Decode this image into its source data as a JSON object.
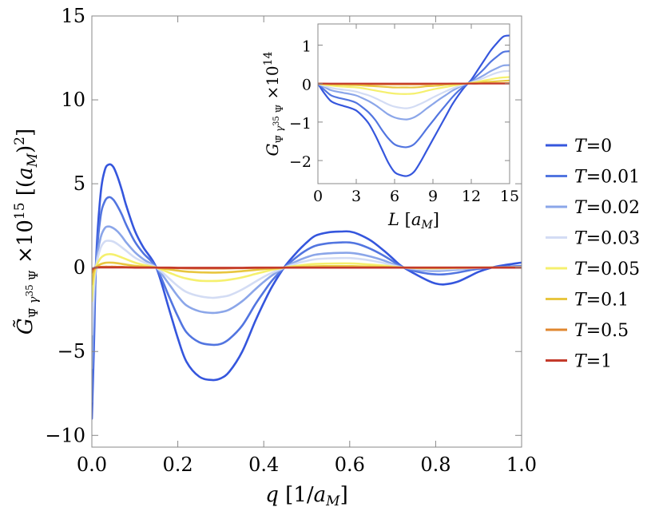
{
  "chart_data": [
    {
      "type": "line",
      "title": "",
      "xlabel": "q [1/a_M]",
      "ylabel": "G̃_{Ψ̄γ^35Ψ} ×10^15 [(a_M)^2]",
      "xlim": [
        0,
        1.0
      ],
      "ylim": [
        -10.7,
        15
      ],
      "xticks": [
        "0.0",
        "0.2",
        "0.4",
        "0.6",
        "0.8",
        "1.0"
      ],
      "yticks": [
        "−10",
        "−5",
        "0",
        "5",
        "10",
        "15"
      ],
      "grid": false,
      "legend": "right-outside",
      "x": [
        0,
        0.005,
        0.01,
        0.02,
        0.03,
        0.04,
        0.05,
        0.06,
        0.07,
        0.08,
        0.1,
        0.12,
        0.15,
        0.18,
        0.2,
        0.22,
        0.25,
        0.28,
        0.3,
        0.32,
        0.35,
        0.38,
        0.4,
        0.42,
        0.45,
        0.48,
        0.5,
        0.52,
        0.55,
        0.58,
        0.6,
        0.62,
        0.65,
        0.68,
        0.7,
        0.72,
        0.75,
        0.78,
        0.8,
        0.82,
        0.85,
        0.88,
        0.9,
        0.93,
        0.96,
        1.0
      ],
      "series": [
        {
          "name": "T=0",
          "color": "#3556dd",
          "values": [
            -9.0,
            -4.5,
            0.5,
            4.3,
            5.8,
            6.15,
            6.0,
            5.4,
            4.6,
            3.7,
            2.2,
            1.2,
            0.0,
            -2.5,
            -4.2,
            -5.6,
            -6.5,
            -6.7,
            -6.6,
            -6.2,
            -5.0,
            -3.2,
            -2.1,
            -1.1,
            0.1,
            1.0,
            1.5,
            1.9,
            2.1,
            2.15,
            2.15,
            2.0,
            1.6,
            1.0,
            0.55,
            0.1,
            -0.35,
            -0.75,
            -0.95,
            -1.0,
            -0.85,
            -0.5,
            -0.25,
            0.0,
            0.15,
            0.3
          ]
        },
        {
          "name": "T=0.01",
          "color": "#5275e0",
          "values": [
            -8.0,
            -3.5,
            0.3,
            3.0,
            3.95,
            4.2,
            4.05,
            3.65,
            3.15,
            2.55,
            1.55,
            0.85,
            0.0,
            -1.75,
            -2.9,
            -3.85,
            -4.45,
            -4.6,
            -4.55,
            -4.25,
            -3.45,
            -2.2,
            -1.45,
            -0.75,
            0.05,
            0.7,
            1.05,
            1.3,
            1.45,
            1.5,
            1.5,
            1.4,
            1.1,
            0.7,
            0.38,
            0.07,
            -0.2,
            -0.35,
            -0.4,
            -0.4,
            -0.3,
            -0.15,
            -0.07,
            0.0,
            0.05,
            0.1
          ]
        },
        {
          "name": "T=0.02",
          "color": "#8ba6e9",
          "values": [
            -6.0,
            -2.0,
            0.2,
            1.75,
            2.35,
            2.45,
            2.35,
            2.15,
            1.85,
            1.5,
            0.92,
            0.5,
            0.0,
            -1.0,
            -1.7,
            -2.25,
            -2.6,
            -2.7,
            -2.65,
            -2.5,
            -2.0,
            -1.3,
            -0.85,
            -0.45,
            0.03,
            0.42,
            0.62,
            0.77,
            0.85,
            0.88,
            0.88,
            0.82,
            0.65,
            0.42,
            0.22,
            0.04,
            -0.1,
            -0.18,
            -0.2,
            -0.18,
            -0.12,
            -0.05,
            -0.02,
            0.0,
            0.02,
            0.05
          ]
        },
        {
          "name": "T=0.03",
          "color": "#d3dcf4",
          "values": [
            -4.0,
            -1.2,
            0.1,
            1.15,
            1.55,
            1.6,
            1.55,
            1.4,
            1.2,
            1.0,
            0.6,
            0.33,
            0.0,
            -0.65,
            -1.1,
            -1.45,
            -1.7,
            -1.8,
            -1.75,
            -1.65,
            -1.3,
            -0.85,
            -0.55,
            -0.3,
            0.02,
            0.28,
            0.4,
            0.5,
            0.55,
            0.57,
            0.57,
            0.53,
            0.42,
            0.27,
            0.14,
            0.02,
            -0.06,
            -0.1,
            -0.11,
            -0.1,
            -0.06,
            -0.03,
            -0.01,
            0.0,
            0.01,
            0.03
          ]
        },
        {
          "name": "T=0.05",
          "color": "#f5f06e",
          "values": [
            -2.0,
            -0.5,
            0.05,
            0.55,
            0.75,
            0.8,
            0.78,
            0.7,
            0.6,
            0.5,
            0.3,
            0.16,
            0.0,
            -0.3,
            -0.5,
            -0.65,
            -0.78,
            -0.8,
            -0.78,
            -0.72,
            -0.58,
            -0.38,
            -0.25,
            -0.13,
            0.01,
            0.12,
            0.18,
            0.22,
            0.24,
            0.25,
            0.25,
            0.23,
            0.18,
            0.12,
            0.06,
            0.01,
            -0.02,
            -0.04,
            -0.04,
            -0.03,
            -0.02,
            -0.01,
            0.0,
            0.0,
            0.0,
            0.01
          ]
        },
        {
          "name": "T=0.1",
          "color": "#e8c640",
          "values": [
            -1.0,
            -0.2,
            0.02,
            0.2,
            0.28,
            0.3,
            0.29,
            0.26,
            0.22,
            0.18,
            0.11,
            0.06,
            0.0,
            -0.11,
            -0.18,
            -0.24,
            -0.28,
            -0.3,
            -0.29,
            -0.27,
            -0.21,
            -0.14,
            -0.09,
            -0.05,
            0.0,
            0.04,
            0.06,
            0.08,
            0.09,
            0.09,
            0.09,
            0.08,
            0.06,
            0.04,
            0.02,
            0.0,
            -0.01,
            -0.01,
            -0.01,
            -0.01,
            0.0,
            0.0,
            0.0,
            0.0,
            0.0,
            0.0
          ]
        },
        {
          "name": "T=0.5",
          "color": "#e0872f",
          "values": [
            -0.3,
            -0.05,
            0.0,
            0.04,
            0.05,
            0.05,
            0.05,
            0.04,
            0.04,
            0.03,
            0.02,
            0.01,
            0.0,
            -0.02,
            -0.03,
            -0.04,
            -0.05,
            -0.05,
            -0.05,
            -0.04,
            -0.03,
            -0.02,
            -0.01,
            -0.01,
            0.0,
            0.0,
            0.0,
            0.0,
            0.0,
            0.0,
            0.0,
            0.0,
            0.0,
            0.0,
            0.0,
            0.0,
            0.0,
            0.0,
            0.0,
            0.0,
            0.0,
            0.0,
            0.0,
            0.0,
            0.0,
            0.0
          ]
        },
        {
          "name": "T=1",
          "color": "#c43a2b",
          "values": [
            -0.1,
            -0.02,
            0.0,
            0.01,
            0.01,
            0.01,
            0.01,
            0.01,
            0.01,
            0.01,
            0.0,
            0.0,
            0.0,
            0.0,
            -0.01,
            -0.01,
            -0.01,
            -0.01,
            -0.01,
            -0.01,
            -0.01,
            0.0,
            0.0,
            0.0,
            0.0,
            0.0,
            0.0,
            0.0,
            0.0,
            0.0,
            0.0,
            0.0,
            0.0,
            0.0,
            0.0,
            0.0,
            0.0,
            0.0,
            0.0,
            0.0,
            0.0,
            0.0,
            0.0,
            0.0,
            0.0,
            0.0
          ]
        }
      ]
    },
    {
      "type": "line",
      "title": "",
      "xlabel": "L [a_M]",
      "ylabel": "G_{Ψ̄γ^35Ψ} ×10^14",
      "xlim": [
        0,
        15
      ],
      "ylim": [
        -2.6,
        1.55
      ],
      "xticks": [
        "0",
        "3",
        "6",
        "9",
        "12",
        "15"
      ],
      "yticks": [
        "−2",
        "−1",
        "0",
        "1"
      ],
      "grid": false,
      "x": [
        0,
        0.5,
        1,
        1.5,
        2,
        2.5,
        3,
        3.5,
        4,
        4.5,
        5,
        5.5,
        6,
        6.5,
        7,
        7.5,
        8,
        8.5,
        9,
        9.5,
        10,
        10.5,
        11,
        11.5,
        12,
        12.5,
        13,
        13.5,
        14,
        14.5,
        15
      ],
      "series": [
        {
          "name": "T=0",
          "color": "#3556dd",
          "values": [
            0,
            -0.25,
            -0.45,
            -0.53,
            -0.58,
            -0.63,
            -0.7,
            -0.85,
            -1.05,
            -1.35,
            -1.7,
            -2.05,
            -2.3,
            -2.38,
            -2.4,
            -2.3,
            -2.05,
            -1.75,
            -1.45,
            -1.15,
            -0.85,
            -0.55,
            -0.3,
            -0.08,
            0.1,
            0.35,
            0.6,
            0.85,
            1.05,
            1.22,
            1.25
          ]
        },
        {
          "name": "T=0.01",
          "color": "#5275e0",
          "values": [
            0,
            -0.16,
            -0.3,
            -0.36,
            -0.4,
            -0.44,
            -0.5,
            -0.62,
            -0.76,
            -0.95,
            -1.2,
            -1.42,
            -1.58,
            -1.64,
            -1.65,
            -1.58,
            -1.4,
            -1.18,
            -0.97,
            -0.76,
            -0.56,
            -0.36,
            -0.19,
            -0.05,
            0.06,
            0.22,
            0.38,
            0.56,
            0.7,
            0.82,
            0.84
          ]
        },
        {
          "name": "T=0.02",
          "color": "#8ba6e9",
          "values": [
            0,
            -0.09,
            -0.17,
            -0.21,
            -0.24,
            -0.27,
            -0.31,
            -0.38,
            -0.46,
            -0.56,
            -0.68,
            -0.8,
            -0.88,
            -0.92,
            -0.93,
            -0.88,
            -0.78,
            -0.65,
            -0.53,
            -0.41,
            -0.3,
            -0.19,
            -0.1,
            -0.02,
            0.04,
            0.13,
            0.22,
            0.32,
            0.4,
            0.47,
            0.48
          ]
        },
        {
          "name": "T=0.03",
          "color": "#d3dcf4",
          "values": [
            0,
            -0.06,
            -0.11,
            -0.14,
            -0.16,
            -0.18,
            -0.21,
            -0.26,
            -0.31,
            -0.38,
            -0.46,
            -0.54,
            -0.6,
            -0.63,
            -0.64,
            -0.6,
            -0.53,
            -0.45,
            -0.36,
            -0.28,
            -0.2,
            -0.13,
            -0.07,
            -0.01,
            0.03,
            0.09,
            0.15,
            0.22,
            0.28,
            0.32,
            0.33
          ]
        },
        {
          "name": "T=0.05",
          "color": "#f5f06e",
          "values": [
            0,
            -0.03,
            -0.05,
            -0.07,
            -0.08,
            -0.09,
            -0.1,
            -0.12,
            -0.15,
            -0.18,
            -0.21,
            -0.24,
            -0.26,
            -0.27,
            -0.27,
            -0.26,
            -0.23,
            -0.19,
            -0.15,
            -0.12,
            -0.09,
            -0.06,
            -0.03,
            0.0,
            0.02,
            0.05,
            0.08,
            0.11,
            0.14,
            0.16,
            0.17
          ]
        },
        {
          "name": "T=0.1",
          "color": "#e8c640",
          "values": [
            0,
            -0.01,
            -0.02,
            -0.03,
            -0.03,
            -0.04,
            -0.04,
            -0.05,
            -0.06,
            -0.07,
            -0.08,
            -0.09,
            -0.1,
            -0.1,
            -0.1,
            -0.1,
            -0.09,
            -0.07,
            -0.06,
            -0.05,
            -0.03,
            -0.02,
            -0.01,
            0.0,
            0.01,
            0.02,
            0.04,
            0.05,
            0.06,
            0.07,
            0.08
          ]
        },
        {
          "name": "T=0.5",
          "color": "#e0872f",
          "values": [
            0,
            0,
            -0.01,
            -0.01,
            -0.01,
            -0.01,
            -0.01,
            -0.01,
            -0.02,
            -0.02,
            -0.02,
            -0.02,
            -0.02,
            -0.02,
            -0.02,
            -0.02,
            -0.02,
            -0.02,
            -0.01,
            -0.01,
            -0.01,
            0,
            0,
            0,
            0,
            0,
            0.01,
            0.01,
            0.01,
            0.01,
            0.01
          ]
        },
        {
          "name": "T=1",
          "color": "#c43a2b",
          "values": [
            0,
            0,
            0,
            0,
            0,
            0,
            0,
            0,
            0,
            0,
            0,
            0,
            0,
            0,
            0,
            0,
            0,
            0,
            0,
            0,
            0,
            0,
            0,
            0,
            0,
            0,
            0,
            0,
            0,
            0,
            0
          ]
        }
      ]
    }
  ]
}
